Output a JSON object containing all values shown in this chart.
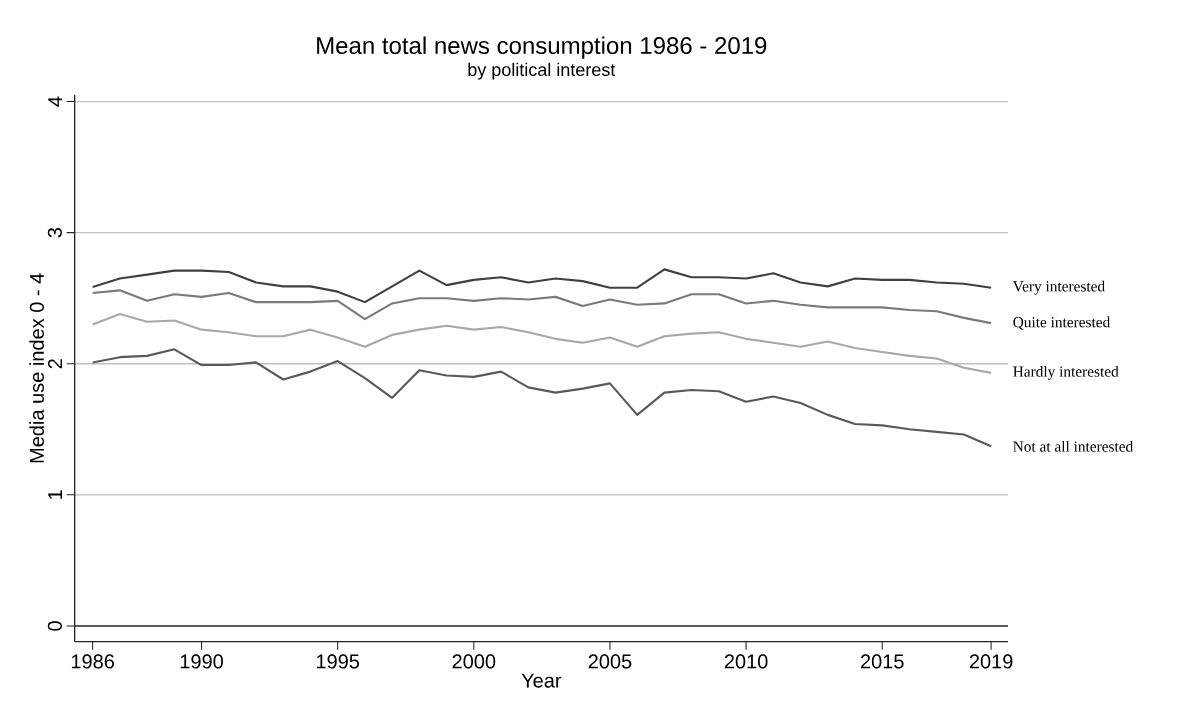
{
  "chart_data": {
    "type": "line",
    "title": "Mean total news consumption 1986 - 2019",
    "subtitle": "by political interest",
    "xlabel": "Year",
    "ylabel": "Media use index 0 - 4",
    "x": [
      1986,
      1987,
      1988,
      1989,
      1990,
      1991,
      1992,
      1993,
      1994,
      1995,
      1996,
      1997,
      1998,
      1999,
      2000,
      2001,
      2002,
      2003,
      2004,
      2005,
      2006,
      2007,
      2008,
      2009,
      2010,
      2011,
      2012,
      2013,
      2014,
      2015,
      2016,
      2017,
      2018,
      2019
    ],
    "series": [
      {
        "name": "Very interested",
        "color": "#404040",
        "values": [
          2.585,
          2.65,
          2.68,
          2.71,
          2.71,
          2.7,
          2.62,
          2.59,
          2.59,
          2.55,
          2.47,
          2.59,
          2.71,
          2.6,
          2.64,
          2.66,
          2.62,
          2.65,
          2.63,
          2.58,
          2.58,
          2.72,
          2.66,
          2.66,
          2.65,
          2.69,
          2.62,
          2.59,
          2.65,
          2.64,
          2.64,
          2.62,
          2.61,
          2.58
        ]
      },
      {
        "name": "Quite interested",
        "color": "#7a7a7a",
        "values": [
          2.54,
          2.56,
          2.48,
          2.53,
          2.51,
          2.54,
          2.47,
          2.47,
          2.47,
          2.48,
          2.34,
          2.46,
          2.5,
          2.5,
          2.48,
          2.5,
          2.49,
          2.51,
          2.44,
          2.49,
          2.45,
          2.46,
          2.53,
          2.53,
          2.46,
          2.48,
          2.45,
          2.43,
          2.43,
          2.43,
          2.41,
          2.4,
          2.35,
          2.31
        ]
      },
      {
        "name": "Hardly interested",
        "color": "#a8a8a8",
        "values": [
          2.3,
          2.38,
          2.32,
          2.33,
          2.26,
          2.24,
          2.21,
          2.21,
          2.26,
          2.2,
          2.13,
          2.22,
          2.26,
          2.29,
          2.26,
          2.28,
          2.24,
          2.19,
          2.16,
          2.2,
          2.13,
          2.21,
          2.23,
          2.24,
          2.19,
          2.16,
          2.13,
          2.17,
          2.12,
          2.09,
          2.06,
          2.04,
          1.97,
          1.93
        ]
      },
      {
        "name": "Not at all interested",
        "color": "#5a5a5a",
        "values": [
          2.01,
          2.05,
          2.06,
          2.11,
          1.99,
          1.99,
          2.01,
          1.88,
          1.94,
          2.02,
          1.89,
          1.74,
          1.95,
          1.91,
          1.9,
          1.94,
          1.82,
          1.78,
          1.81,
          1.85,
          1.61,
          1.78,
          1.8,
          1.79,
          1.71,
          1.75,
          1.7,
          1.61,
          1.54,
          1.53,
          1.5,
          1.48,
          1.46,
          1.37
        ]
      }
    ],
    "xlim": [
      1985.34,
      2019.62
    ],
    "ylim": [
      -0.12,
      4.05
    ],
    "xticks": [
      1986,
      1990,
      1995,
      2000,
      2005,
      2010,
      2015,
      2019
    ],
    "yticks": [
      0,
      1,
      2,
      3,
      4
    ],
    "grid": "y",
    "legend": false,
    "marker": "none",
    "line_style": "solid",
    "ref_lines": [
      {
        "axis": "y",
        "value": 0,
        "color": "#333333"
      }
    ]
  }
}
